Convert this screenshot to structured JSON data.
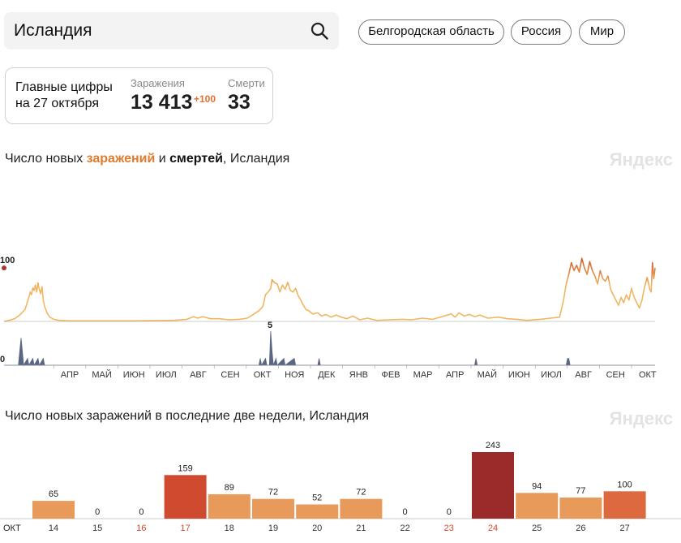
{
  "search": {
    "value": "Исландия"
  },
  "regions": [
    {
      "label": "Белгородская область"
    },
    {
      "label": "Россия"
    },
    {
      "label": "Мир"
    }
  ],
  "summary": {
    "title_line1": "Главные цифры",
    "title_line2": "на 27 октября",
    "cases_label": "Заражения",
    "cases_value": "13 413",
    "cases_delta": "+100",
    "deaths_label": "Смерти",
    "deaths_value": "33"
  },
  "timeline": {
    "title_prefix": "Число новых ",
    "title_cases": "заражений",
    "title_mid": " и ",
    "title_deaths": "смертей",
    "title_suffix": ", Исландия",
    "watermark": "Яндекс"
  },
  "daily": {
    "title": "Число новых заражений в последние две недели, Исландия",
    "watermark": "Яндекс"
  },
  "colors": {
    "cases_line": "#f0b662",
    "cases_peak": "#d05a2a",
    "deaths_area": "#5a6683",
    "bar_normal": "#e89a5a",
    "bar_high": "#cf4a2e",
    "bar_max": "#9b2a2a",
    "bar_latest": "#dd6a3e",
    "weekend_text": "#d04a2a"
  },
  "chart_data": [
    {
      "type": "line",
      "title": "Число новых заражений и смертей, Исландия",
      "series": [
        {
          "name": "заражения",
          "points": [
            [
              0,
              0
            ],
            [
              4,
              2
            ],
            [
              8,
              5
            ],
            [
              12,
              12
            ],
            [
              16,
              22
            ],
            [
              19,
              45
            ],
            [
              20,
              55
            ],
            [
              21,
              50
            ],
            [
              22,
              63
            ],
            [
              23,
              58
            ],
            [
              24,
              68
            ],
            [
              25,
              55
            ],
            [
              26,
              72
            ],
            [
              27,
              60
            ],
            [
              28,
              52
            ],
            [
              29,
              65
            ],
            [
              30,
              40
            ],
            [
              31,
              28
            ],
            [
              32,
              22
            ],
            [
              33,
              15
            ],
            [
              35,
              8
            ],
            [
              38,
              4
            ],
            [
              42,
              2
            ],
            [
              50,
              1
            ],
            [
              70,
              1
            ],
            [
              100,
              1
            ],
            [
              130,
              2
            ],
            [
              140,
              4
            ],
            [
              145,
              9
            ],
            [
              148,
              6
            ],
            [
              152,
              9
            ],
            [
              158,
              5
            ],
            [
              165,
              5
            ],
            [
              172,
              3
            ],
            [
              180,
              4
            ],
            [
              186,
              6
            ],
            [
              190,
              12
            ],
            [
              195,
              20
            ],
            [
              198,
              28
            ],
            [
              200,
              50
            ],
            [
              202,
              55
            ],
            [
              204,
              62
            ],
            [
              205,
              78
            ],
            [
              207,
              72
            ],
            [
              209,
              70
            ],
            [
              211,
              55
            ],
            [
              213,
              68
            ],
            [
              215,
              60
            ],
            [
              217,
              73
            ],
            [
              219,
              58
            ],
            [
              221,
              55
            ],
            [
              223,
              62
            ],
            [
              225,
              48
            ],
            [
              227,
              40
            ],
            [
              229,
              30
            ],
            [
              231,
              22
            ],
            [
              233,
              20
            ],
            [
              236,
              14
            ],
            [
              240,
              16
            ],
            [
              243,
              10
            ],
            [
              246,
              13
            ],
            [
              250,
              8
            ],
            [
              254,
              12
            ],
            [
              258,
              8
            ],
            [
              262,
              5
            ],
            [
              267,
              10
            ],
            [
              272,
              3
            ],
            [
              278,
              6
            ],
            [
              285,
              2
            ],
            [
              295,
              3
            ],
            [
              305,
              4
            ],
            [
              312,
              3
            ],
            [
              320,
              6
            ],
            [
              328,
              4
            ],
            [
              335,
              9
            ],
            [
              342,
              14
            ],
            [
              345,
              8
            ],
            [
              348,
              16
            ],
            [
              352,
              10
            ],
            [
              356,
              13
            ],
            [
              360,
              9
            ],
            [
              364,
              12
            ],
            [
              370,
              6
            ],
            [
              378,
              8
            ],
            [
              385,
              5
            ],
            [
              392,
              4
            ],
            [
              400,
              2
            ],
            [
              410,
              4
            ],
            [
              418,
              6
            ],
            [
              425,
              8
            ],
            [
              428,
              40
            ],
            [
              430,
              70
            ],
            [
              432,
              88
            ],
            [
              434,
              110
            ],
            [
              436,
              95
            ],
            [
              438,
              105
            ],
            [
              440,
              92
            ],
            [
              442,
              118
            ],
            [
              444,
              100
            ],
            [
              446,
              88
            ],
            [
              448,
              112
            ],
            [
              450,
              95
            ],
            [
              452,
              85
            ],
            [
              454,
              70
            ],
            [
              456,
              95
            ],
            [
              458,
              80
            ],
            [
              460,
              75
            ],
            [
              462,
              85
            ],
            [
              464,
              60
            ],
            [
              466,
              50
            ],
            [
              468,
              40
            ],
            [
              470,
              30
            ],
            [
              472,
              45
            ],
            [
              474,
              35
            ],
            [
              476,
              50
            ],
            [
              478,
              40
            ],
            [
              480,
              62
            ],
            [
              482,
              45
            ],
            [
              484,
              35
            ],
            [
              486,
              25
            ],
            [
              488,
              40
            ],
            [
              490,
              65
            ],
            [
              492,
              82
            ],
            [
              494,
              60
            ],
            [
              495,
              55
            ],
            [
              496,
              110
            ],
            [
              497,
              80
            ],
            [
              498,
              100
            ]
          ]
        },
        {
          "name": "смерти",
          "points": [
            [
              0,
              0
            ],
            [
              11,
              0
            ],
            [
              12,
              2
            ],
            [
              13,
              4
            ],
            [
              14,
              2
            ],
            [
              15,
              0
            ],
            [
              18,
              1
            ],
            [
              19,
              0
            ],
            [
              22,
              1
            ],
            [
              23,
              0
            ],
            [
              26,
              1
            ],
            [
              27,
              0
            ],
            [
              30,
              1
            ],
            [
              31,
              0
            ],
            [
              195,
              0
            ],
            [
              196,
              1
            ],
            [
              197,
              0
            ],
            [
              200,
              1
            ],
            [
              201,
              0
            ],
            [
              203,
              0
            ],
            [
              204,
              5
            ],
            [
              205,
              2
            ],
            [
              206,
              0
            ],
            [
              208,
              1
            ],
            [
              209,
              0
            ],
            [
              214,
              1
            ],
            [
              215,
              0
            ],
            [
              222,
              1
            ],
            [
              223,
              0
            ],
            [
              240,
              0
            ],
            [
              241,
              1
            ],
            [
              242,
              0
            ],
            [
              360,
              0
            ],
            [
              361,
              1
            ],
            [
              362,
              0
            ],
            [
              430,
              0
            ],
            [
              431,
              1
            ],
            [
              432,
              1
            ],
            [
              433,
              0
            ],
            [
              498,
              0
            ]
          ]
        }
      ],
      "max_cases": 243,
      "max_deaths": 5,
      "annotations": {
        "cases_label": "100",
        "deaths_label": "0",
        "deaths_peak_label": "5"
      },
      "x_axis_labels": [
        "АПР",
        "МАЙ",
        "ИЮН",
        "ИЮЛ",
        "АВГ",
        "СЕН",
        "ОКТ",
        "НОЯ",
        "ДЕК",
        "ЯНВ",
        "ФЕВ",
        "МАР",
        "АПР",
        "МАЙ",
        "ИЮН",
        "ИЮЛ",
        "АВГ",
        "СЕН",
        "ОКТ"
      ],
      "x_axis_days": [
        31,
        61,
        92,
        122,
        153,
        184,
        214,
        245,
        275,
        306,
        337,
        365,
        396,
        426,
        457,
        487,
        518,
        549,
        579
      ]
    },
    {
      "type": "bar",
      "title": "Число новых заражений в последние две недели, Исландия",
      "axis_start_label": "ОКТ",
      "categories": [
        "14",
        "15",
        "16",
        "17",
        "18",
        "19",
        "20",
        "21",
        "22",
        "23",
        "24",
        "25",
        "26",
        "27"
      ],
      "values": [
        65,
        0,
        0,
        159,
        89,
        72,
        52,
        72,
        0,
        0,
        243,
        94,
        77,
        100
      ],
      "weekend": [
        false,
        false,
        true,
        true,
        false,
        false,
        false,
        false,
        false,
        true,
        true,
        false,
        false,
        false
      ]
    }
  ]
}
